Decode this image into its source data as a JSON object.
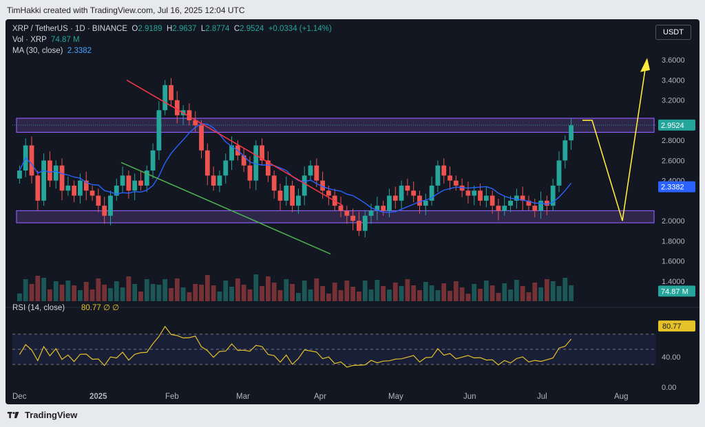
{
  "credit": "TimHakki created with TradingView.com, Jul 16, 2025 12:04 UTC",
  "header": {
    "symbol": "XRP / TetherUS · 1D · BINANCE",
    "o_label": "O",
    "o_value": "2.9189",
    "h_label": "H",
    "h_value": "2.9637",
    "l_label": "L",
    "l_value": "2.8774",
    "c_label": "C",
    "c_value": "2.9524",
    "change": "+0.0334 (+1.14%)",
    "vol_label": "Vol · XRP",
    "vol_value": "74.87 M",
    "ma_label": "MA (30, close)",
    "ma_value": "2.3382"
  },
  "currency_button": "USDT",
  "rsi_header": {
    "label": "RSI (14, close)",
    "value": "80.77",
    "extra1": "∅",
    "extra2": "∅"
  },
  "footer_brand": "TradingView",
  "colors": {
    "bg": "#131722",
    "up": "#26a69a",
    "down": "#ef5350",
    "ma": "#2962ff",
    "rsi": "#e6c229",
    "zone": "#7e57c2",
    "arrow": "#ffeb3b",
    "trend_red": "#f23645",
    "trend_green": "#4caf50"
  },
  "chart_data": {
    "type": "candlestick",
    "y_ticks": [
      "3.6000",
      "3.4000",
      "3.2000",
      "2.8000",
      "2.6000",
      "2.4000",
      "2.0000",
      "1.8000",
      "1.6000",
      "1.4000"
    ],
    "ylim": [
      1.2,
      3.8
    ],
    "x_ticks": [
      "Dec",
      "2025",
      "Feb",
      "Mar",
      "Apr",
      "May",
      "Jun",
      "Jul",
      "Aug"
    ],
    "price_tags": [
      {
        "value": "2.9524",
        "y": 2.9524,
        "color": "#26a69a"
      },
      {
        "value": "2.3382",
        "y": 2.3382,
        "color": "#2962ff"
      },
      {
        "value": "74.87 M",
        "y": 1.3,
        "color": "#26a69a"
      }
    ],
    "close_path": [
      2.5,
      2.75,
      2.45,
      2.2,
      2.6,
      2.4,
      2.55,
      2.3,
      2.35,
      2.25,
      2.4,
      2.3,
      2.25,
      2.15,
      2.05,
      2.25,
      2.35,
      2.45,
      2.3,
      2.4,
      2.35,
      2.5,
      2.7,
      3.1,
      3.35,
      3.2,
      3.05,
      3.1,
      3.0,
      2.95,
      2.7,
      2.45,
      2.35,
      2.45,
      2.6,
      2.75,
      2.65,
      2.55,
      2.4,
      2.75,
      2.6,
      2.45,
      2.3,
      2.2,
      2.35,
      2.15,
      2.25,
      2.45,
      2.55,
      2.4,
      2.3,
      2.25,
      2.15,
      2.1,
      2.05,
      2.0,
      1.9,
      2.05,
      2.1,
      2.15,
      2.1,
      2.25,
      2.2,
      2.35,
      2.3,
      2.25,
      2.15,
      2.2,
      2.35,
      2.55,
      2.45,
      2.4,
      2.35,
      2.3,
      2.25,
      2.3,
      2.2,
      2.25,
      2.15,
      2.1,
      2.15,
      2.2,
      2.25,
      2.2,
      2.15,
      2.1,
      2.2,
      2.15,
      2.35,
      2.6,
      2.8,
      2.95
    ],
    "ma_series_label": "MA (30, close)",
    "zones": [
      {
        "name": "resistance",
        "low": 2.88,
        "high": 3.02
      },
      {
        "name": "support",
        "low": 1.98,
        "high": 2.1
      }
    ],
    "rsi": {
      "ylim": [
        0,
        100
      ],
      "ticks": [
        "40.00",
        "0.00"
      ],
      "levels": [
        70,
        50,
        30
      ],
      "last": 80.77
    }
  }
}
